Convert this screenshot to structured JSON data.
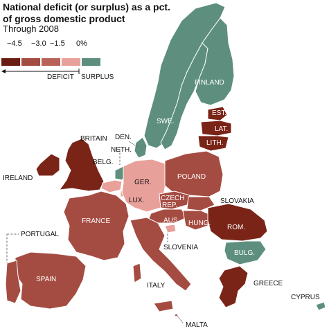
{
  "title": "National deficit (or surplus) as a pct. of gross domestic product",
  "subtitle": "Through 2008",
  "legend": {
    "ticks": [
      "−4.5",
      "−3.0",
      "−1.5",
      "0%"
    ],
    "deficit_label": "DEFICIT",
    "surplus_label": "SURPLUS",
    "colors": [
      "#6b1d14",
      "#a54c42",
      "#b8625a",
      "#e8a19a",
      "#5e8f7e"
    ]
  },
  "colors": {
    "deficit_dark": "#7a2418",
    "deficit_mid": "#a54c42",
    "deficit_light": "#e8a19a",
    "surplus": "#5e8f7e",
    "outline": "#ffffff"
  },
  "countries": {
    "finland": "FINLAND",
    "sweden": "SWE.",
    "estonia": "EST.",
    "latvia": "LAT.",
    "lithuania": "LITH.",
    "britain": "BRITAIN",
    "denmark": "DEN.",
    "netherlands": "NETH.",
    "ireland": "IRELAND",
    "belgium": "BELG.",
    "poland": "POLAND",
    "germany": "GER.",
    "luxembourg": "LUX.",
    "czech": "CZECH",
    "czech2": "REP.",
    "slovakia": "SLOVAKIA",
    "france": "FRANCE",
    "austria": "AUS.",
    "hungary": "HUNG.",
    "romania": "ROM.",
    "portugal": "PORTUGAL",
    "slovenia": "SLOVENIA",
    "bulgaria": "BULG.",
    "spain": "SPAIN",
    "italy": "ITALY",
    "greece": "GREECE",
    "cyprus": "CYPRUS",
    "malta": "MALTA"
  }
}
